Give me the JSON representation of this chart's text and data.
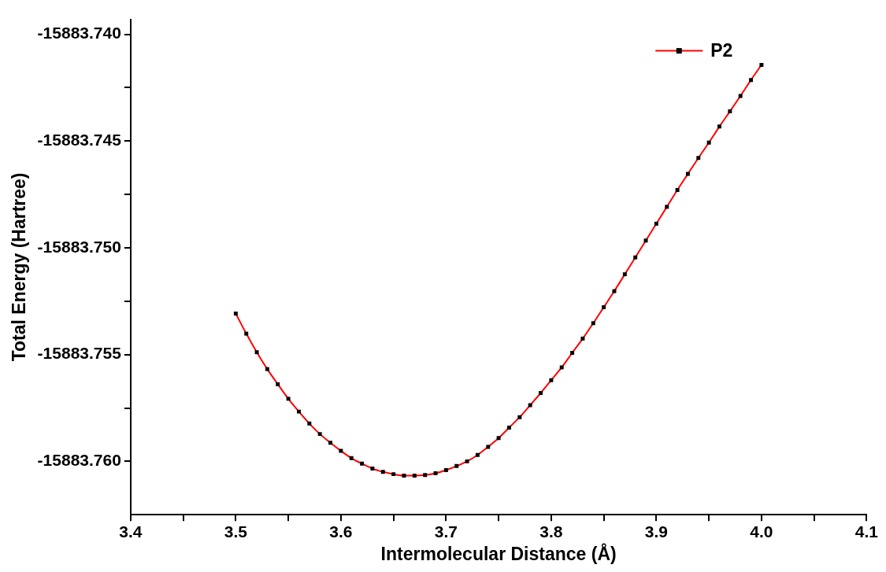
{
  "chart_data": {
    "type": "line",
    "xlabel": "Intermolecular Distance (Å)",
    "ylabel": "Total Energy (Hartree)",
    "x": [
      3.5,
      3.51,
      3.52,
      3.53,
      3.54,
      3.55,
      3.56,
      3.57,
      3.58,
      3.59,
      3.6,
      3.61,
      3.62,
      3.63,
      3.64,
      3.65,
      3.66,
      3.67,
      3.68,
      3.69,
      3.7,
      3.71,
      3.72,
      3.73,
      3.74,
      3.75,
      3.76,
      3.77,
      3.78,
      3.79,
      3.8,
      3.81,
      3.82,
      3.83,
      3.84,
      3.85,
      3.86,
      3.87,
      3.88,
      3.89,
      3.9,
      3.91,
      3.92,
      3.93,
      3.94,
      3.95,
      3.96,
      3.97,
      3.98,
      3.99,
      4.0
    ],
    "series": [
      {
        "name": "P2",
        "color": "#ff0000",
        "values": [
          -15883.75308,
          -15883.75402,
          -15883.75489,
          -15883.75568,
          -15883.75639,
          -15883.75707,
          -15883.75767,
          -15883.75823,
          -15883.75872,
          -15883.75913,
          -15883.75951,
          -15883.75985,
          -15883.76011,
          -15883.76034,
          -15883.76049,
          -15883.7606,
          -15883.76067,
          -15883.76067,
          -15883.76064,
          -15883.76056,
          -15883.76041,
          -15883.76022,
          -15883.76,
          -15883.7597,
          -15883.75932,
          -15883.75891,
          -15883.75842,
          -15883.75793,
          -15883.75737,
          -15883.7568,
          -15883.7562,
          -15883.7556,
          -15883.75492,
          -15883.75425,
          -15883.75353,
          -15883.75278,
          -15883.75203,
          -15883.75124,
          -15883.75045,
          -15883.74966,
          -15883.74887,
          -15883.74808,
          -15883.74729,
          -15883.74654,
          -15883.74579,
          -15883.74507,
          -15883.74432,
          -15883.74361,
          -15883.74289,
          -15883.74214,
          -15883.74143
        ]
      }
    ],
    "xlim": [
      3.4,
      4.1
    ],
    "xticks": [
      {
        "value": 3.4,
        "label": "3.4"
      },
      {
        "value": 3.45,
        "label": null
      },
      {
        "value": 3.5,
        "label": "3.5"
      },
      {
        "value": 3.55,
        "label": null
      },
      {
        "value": 3.6,
        "label": "3.6"
      },
      {
        "value": 3.65,
        "label": null
      },
      {
        "value": 3.7,
        "label": "3.7"
      },
      {
        "value": 3.75,
        "label": null
      },
      {
        "value": 3.8,
        "label": "3.8"
      },
      {
        "value": 3.85,
        "label": null
      },
      {
        "value": 3.9,
        "label": "3.9"
      },
      {
        "value": 3.95,
        "label": null
      },
      {
        "value": 4.0,
        "label": "4.0"
      },
      {
        "value": 4.05,
        "label": null
      },
      {
        "value": 4.1,
        "label": "4.1"
      }
    ],
    "ylim": [
      -15883.7625,
      -15883.7393
    ],
    "yticks": [
      {
        "value": -15883.76,
        "label": "-15883.760"
      },
      {
        "value": -15883.7575,
        "label": null
      },
      {
        "value": -15883.755,
        "label": "-15883.755"
      },
      {
        "value": -15883.7525,
        "label": null
      },
      {
        "value": -15883.75,
        "label": "-15883.750"
      },
      {
        "value": -15883.7475,
        "label": null
      },
      {
        "value": -15883.745,
        "label": "-15883.745"
      },
      {
        "value": -15883.7425,
        "label": null
      },
      {
        "value": -15883.74,
        "label": "-15883.740"
      }
    ],
    "legend": "top right",
    "marker": "square",
    "line_style": "solid",
    "grid": false
  }
}
